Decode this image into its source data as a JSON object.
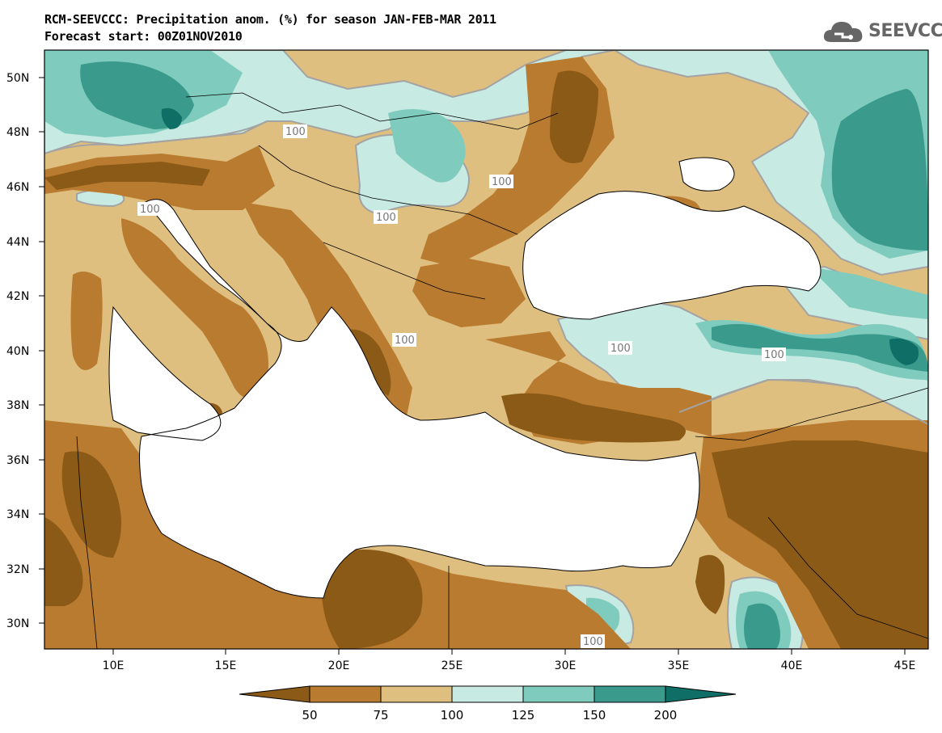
{
  "title_line1": "RCM-SEEVCCC: Precipitation anom. (%) for season JAN-FEB-MAR 2011",
  "title_line2": "Forecast start: 00Z01NOV2010",
  "logo_text": "SEEVCCC",
  "colors": {
    "lt50": "#8b5a17",
    "c50_75": "#b97b2f",
    "c75_100": "#dfbf7f",
    "c100_125": "#c7eae3",
    "c125_150": "#7fcbbd",
    "c150_200": "#3a9a8c",
    "gt200": "#0f6f66",
    "contour": "#a3a3a3",
    "sea": "#ffffff"
  },
  "lat_labels": [
    "50N",
    "48N",
    "46N",
    "44N",
    "42N",
    "40N",
    "38N",
    "36N",
    "34N",
    "32N",
    "30N"
  ],
  "lon_labels": [
    "10E",
    "15E",
    "20E",
    "25E",
    "30E",
    "35E",
    "40E",
    "45E"
  ],
  "colorbar_labels": [
    "50",
    "75",
    "100",
    "125",
    "150",
    "200"
  ],
  "contour_labels": [
    "100",
    "100",
    "100",
    "100",
    "100",
    "100",
    "100",
    "100"
  ]
}
